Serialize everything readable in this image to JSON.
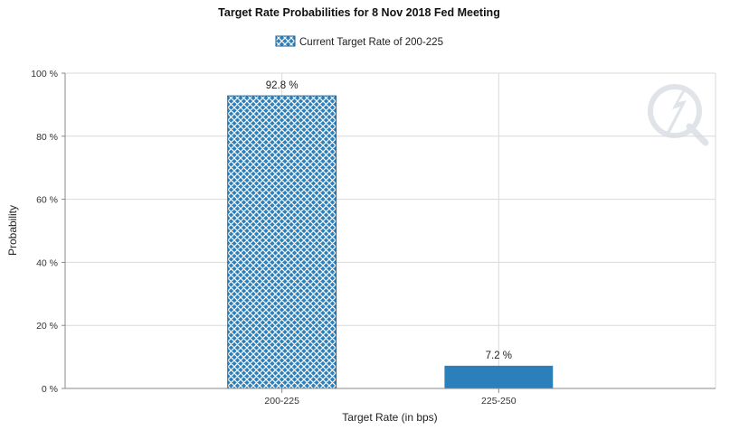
{
  "chart_data": {
    "type": "bar",
    "title": "Target Rate Probabilities for 8 Nov 2018 Fed Meeting",
    "xlabel": "Target Rate (in bps)",
    "ylabel": "Probability",
    "categories": [
      "200-225",
      "225-250"
    ],
    "values": [
      92.8,
      7.2
    ],
    "value_labels": [
      "92.8 %",
      "7.2 %"
    ],
    "ylim": [
      0,
      100
    ],
    "y_ticks": [
      0,
      20,
      40,
      60,
      80,
      100
    ],
    "y_tick_labels": [
      "0 %",
      "20 %",
      "40 %",
      "60 %",
      "80 %",
      "100 %"
    ],
    "grid": true,
    "legend": {
      "position": "top-center",
      "entries": [
        "Current Target Rate of 200-225"
      ]
    },
    "bar_styles": [
      "hatched",
      "solid"
    ],
    "colors": {
      "bar": "#2b7fbb",
      "hatch_line": "#ffffff",
      "grid": "#d9d9d9",
      "axis": "#888888",
      "bar_border": "#1f5f8e"
    }
  }
}
